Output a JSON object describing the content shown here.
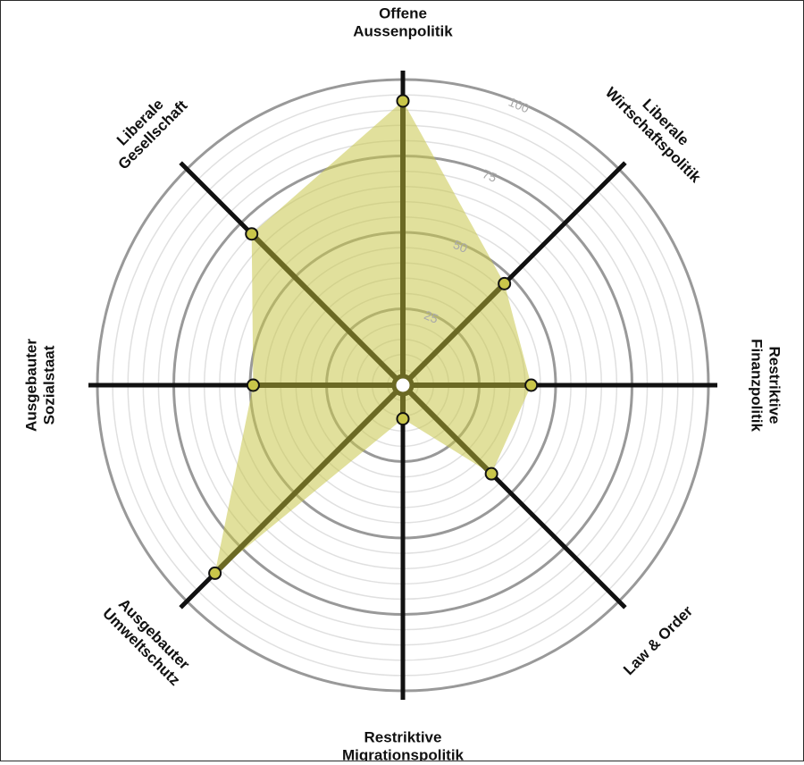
{
  "chart_data": {
    "type": "radar",
    "axes": [
      {
        "label": [
          "Offene",
          "Aussenpolitik"
        ],
        "value": 93
      },
      {
        "label": [
          "Liberale",
          "Wirtschaftspolitik"
        ],
        "value": 47
      },
      {
        "label": [
          "Restriktive",
          "Finanzpolitik"
        ],
        "value": 42
      },
      {
        "label": [
          "Law & Order"
        ],
        "value": 41
      },
      {
        "label": [
          "Restriktive",
          "Migrationspolitik"
        ],
        "value": 11
      },
      {
        "label": [
          "Ausgebauter",
          "Umweltschutz"
        ],
        "value": 87
      },
      {
        "label": [
          "Ausgebauter",
          "Sozialstaat"
        ],
        "value": 49
      },
      {
        "label": [
          "Liberale",
          "Gesellschaft"
        ],
        "value": 70
      }
    ],
    "rlim": [
      0,
      100
    ],
    "ticks": [
      25,
      50,
      75,
      100
    ],
    "minor_step": 5,
    "colors": {
      "fill": "#c9c64a",
      "fill_opacity": 0.55,
      "line": "#6b6924",
      "point": "#c9c64a",
      "axis": "#111111",
      "grid": "#999999",
      "minor_grid": "#e0e0e0"
    }
  }
}
